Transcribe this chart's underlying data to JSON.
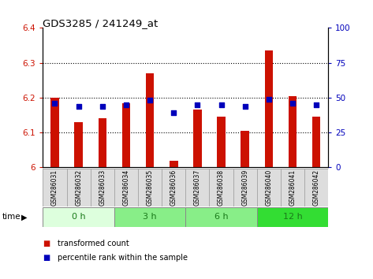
{
  "title": "GDS3285 / 241249_at",
  "samples": [
    "GSM286031",
    "GSM286032",
    "GSM286033",
    "GSM286034",
    "GSM286035",
    "GSM286036",
    "GSM286037",
    "GSM286038",
    "GSM286039",
    "GSM286040",
    "GSM286041",
    "GSM286042"
  ],
  "transformed_count": [
    6.2,
    6.13,
    6.14,
    6.185,
    6.27,
    6.02,
    6.165,
    6.145,
    6.105,
    6.335,
    6.205,
    6.145
  ],
  "percentile_rank": [
    46,
    44,
    44,
    45,
    48,
    39,
    45,
    45,
    44,
    49,
    46,
    45
  ],
  "ylim_left": [
    6.0,
    6.4
  ],
  "ylim_right": [
    0,
    100
  ],
  "yticks_left": [
    6.0,
    6.1,
    6.2,
    6.3,
    6.4
  ],
  "ytick_labels_left": [
    "6",
    "6.1",
    "6.2",
    "6.3",
    "6.4"
  ],
  "yticks_right": [
    0,
    25,
    50,
    75,
    100
  ],
  "ytick_labels_right": [
    "0",
    "25",
    "50",
    "75",
    "100"
  ],
  "bar_color": "#cc1100",
  "marker_color": "#0000bb",
  "bar_width": 0.35,
  "marker_size": 25,
  "time_groups": [
    {
      "label": "0 h",
      "start": 0,
      "end": 2,
      "color": "#ddffdd"
    },
    {
      "label": "3 h",
      "start": 3,
      "end": 5,
      "color": "#88ee88"
    },
    {
      "label": "6 h",
      "start": 6,
      "end": 8,
      "color": "#88ee88"
    },
    {
      "label": "12 h",
      "start": 9,
      "end": 11,
      "color": "#33dd33"
    }
  ],
  "tick_label_color_left": "#cc1100",
  "tick_label_color_right": "#0000bb",
  "legend_items": [
    "transformed count",
    "percentile rank within the sample"
  ],
  "legend_colors": [
    "#cc1100",
    "#0000bb"
  ],
  "time_label": "time",
  "figsize": [
    4.73,
    3.54
  ],
  "dpi": 100
}
